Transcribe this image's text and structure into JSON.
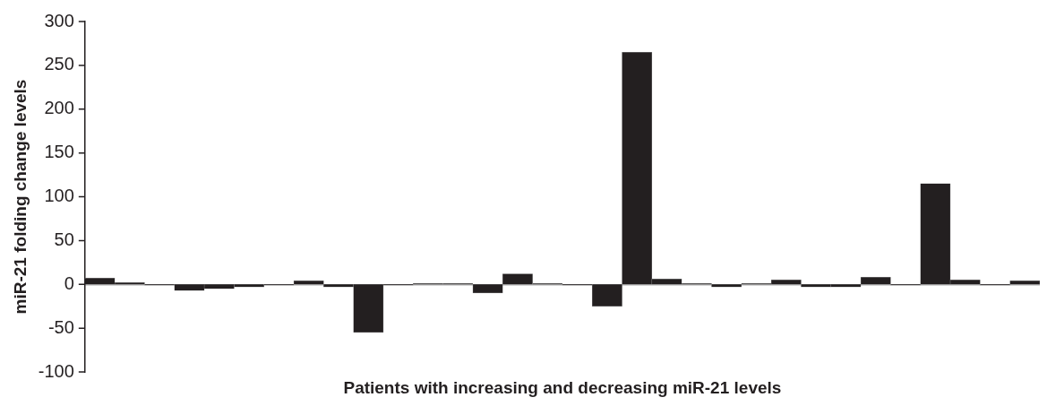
{
  "chart_data": {
    "type": "bar",
    "xlabel": "Patients with increasing and decreasing miR-21 levels",
    "ylabel": "miR-21 folding change levels",
    "categories": [
      null,
      null,
      null,
      null,
      null,
      null,
      null,
      null,
      null,
      null,
      null,
      null,
      null,
      null,
      null,
      null,
      null,
      null,
      null,
      null,
      null,
      null,
      null,
      null,
      null,
      null,
      null,
      null,
      null,
      null,
      null,
      null
    ],
    "values": [
      7,
      2,
      -1,
      -7,
      -5,
      -3,
      -1,
      4,
      -3,
      -55,
      -1,
      1,
      1,
      -10,
      12,
      1,
      -1,
      -25,
      265,
      6,
      1,
      -3,
      1,
      5,
      -3,
      -3,
      8,
      -1,
      115,
      5,
      -1,
      4
    ],
    "color": "#231f20",
    "ylim": [
      -100,
      300
    ],
    "yticks": [
      -100,
      -50,
      0,
      50,
      100,
      150,
      200,
      250,
      300
    ],
    "legend": false
  }
}
